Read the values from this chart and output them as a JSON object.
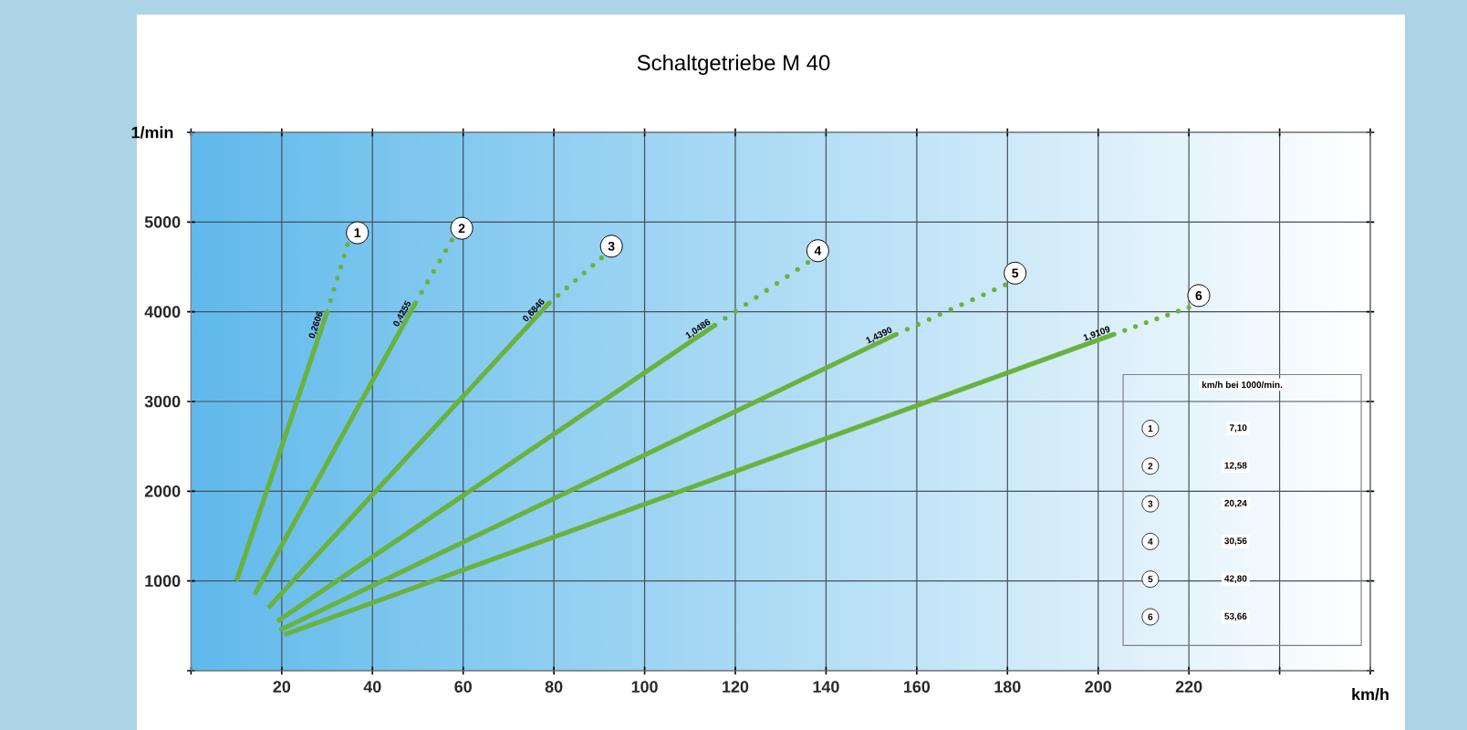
{
  "chart_data": {
    "type": "line",
    "title": "Schaltgetriebe M 40",
    "xlabel": "km/h",
    "ylabel": "1/min",
    "xlim": [
      0,
      260
    ],
    "ylim": [
      0,
      6000
    ],
    "xticks": [
      {
        "value": 0,
        "label": null
      },
      20,
      40,
      60,
      80,
      100,
      120,
      140,
      160,
      180,
      200,
      220,
      {
        "value": 240,
        "label": null
      },
      {
        "value": 260,
        "label": null
      }
    ],
    "yticks": [
      {
        "value": 0,
        "label": null
      },
      1000,
      2000,
      3000,
      4000,
      5000,
      {
        "value": 6000,
        "label": null
      }
    ],
    "grid": true,
    "marker": "none",
    "series": [
      {
        "color": "#6ab23e",
        "line_style": "solid",
        "x": [
          10,
          30
        ],
        "values": [
          1000,
          4000
        ]
      },
      {
        "name": "1",
        "color": "#6ab23e",
        "line_style": "dotted",
        "x": [
          30,
          34.5
        ],
        "values": [
          4000,
          4750
        ]
      },
      {
        "color": "#6ab23e",
        "line_style": "solid",
        "x": [
          14,
          49.5
        ],
        "values": [
          850,
          4100
        ]
      },
      {
        "name": "2",
        "color": "#6ab23e",
        "line_style": "dotted",
        "x": [
          49.5,
          57.5
        ],
        "values": [
          4100,
          4800
        ]
      },
      {
        "color": "#6ab23e",
        "line_style": "solid",
        "x": [
          17,
          79
        ],
        "values": [
          700,
          4100
        ]
      },
      {
        "name": "3",
        "color": "#6ab23e",
        "line_style": "dotted",
        "x": [
          79,
          90.5
        ],
        "values": [
          4100,
          4600
        ]
      },
      {
        "color": "#6ab23e",
        "line_style": "solid",
        "x": [
          19,
          115.5
        ],
        "values": [
          550,
          3850
        ]
      },
      {
        "name": "4",
        "color": "#6ab23e",
        "line_style": "dotted",
        "x": [
          115.5,
          136
        ],
        "values": [
          3850,
          4550
        ]
      },
      {
        "color": "#6ab23e",
        "line_style": "solid",
        "x": [
          19.5,
          155.5
        ],
        "values": [
          450,
          3750
        ]
      },
      {
        "name": "5",
        "color": "#6ab23e",
        "line_style": "dotted",
        "x": [
          155.5,
          179.5
        ],
        "values": [
          3750,
          4300
        ]
      },
      {
        "color": "#6ab23e",
        "line_style": "solid",
        "x": [
          20.5,
          203.5
        ],
        "values": [
          400,
          3750
        ]
      },
      {
        "name": "6",
        "color": "#6ab23e",
        "line_style": "dotted",
        "x": [
          203.5,
          220
        ],
        "values": [
          3750,
          4050
        ]
      }
    ],
    "annotations": [
      "0,2606",
      "0,4255",
      "0,6846",
      "1,0486",
      "1,4390",
      "1,9109",
      "km/h bei 1000/min.",
      "7,10",
      "12,58",
      "20,24",
      "30,56",
      "42,80",
      "53,66"
    ]
  }
}
